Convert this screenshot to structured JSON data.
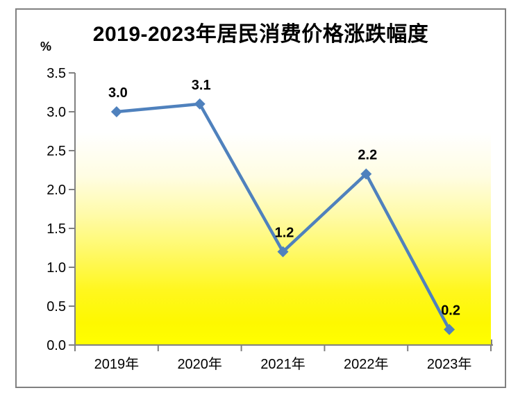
{
  "window": {
    "background": "#ffffff",
    "frame_border_color": "#808080"
  },
  "chart_data": {
    "type": "line",
    "title": "2019-2023年居民消费价格涨跌幅度",
    "unit_label": "%",
    "categories": [
      "2019年",
      "2020年",
      "2021年",
      "2022年",
      "2023年"
    ],
    "values": [
      3.0,
      3.1,
      1.2,
      2.2,
      0.2
    ],
    "point_labels": [
      "3.0",
      "3.1",
      "1.2",
      "2.2",
      "0.2"
    ],
    "yticks": [
      "0.0",
      "0.5",
      "1.0",
      "1.5",
      "2.0",
      "2.5",
      "3.0",
      "3.5"
    ],
    "ylim": [
      0,
      3.5
    ],
    "xlabel": "",
    "ylabel": "%",
    "grid": false,
    "legend": "none",
    "marker": "diamond",
    "line_color": "#4f81bd",
    "axis_color": "#808080",
    "text_color": "#000000",
    "plot_gradient": [
      {
        "offset": 0.0,
        "color": "#ffffff"
      },
      {
        "offset": 0.22,
        "color": "#ffffff"
      },
      {
        "offset": 0.38,
        "color": "#fffde3"
      },
      {
        "offset": 0.52,
        "color": "#fffbaa"
      },
      {
        "offset": 0.66,
        "color": "#fff967"
      },
      {
        "offset": 0.8,
        "color": "#fff71f"
      },
      {
        "offset": 0.92,
        "color": "#fef800"
      },
      {
        "offset": 1.0,
        "color": "#ffff00"
      }
    ]
  }
}
